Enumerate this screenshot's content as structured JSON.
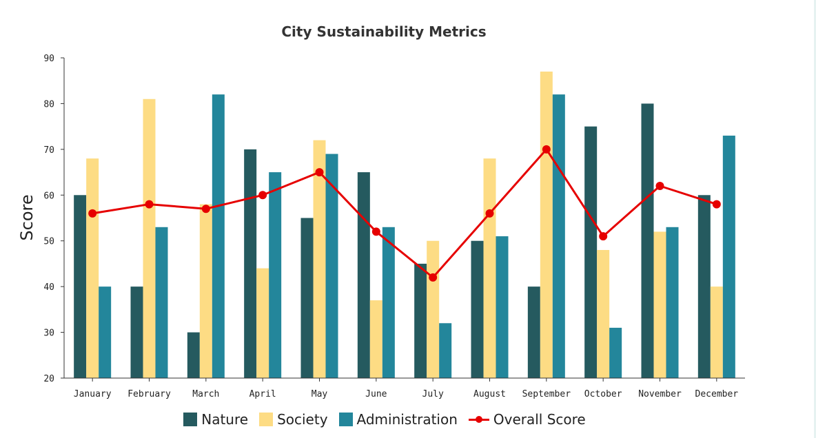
{
  "chart_data": {
    "type": "bar",
    "title": "City Sustainability Metrics",
    "xlabel": "",
    "ylabel": "Score",
    "ylim": [
      20,
      90
    ],
    "yticks": [
      20,
      30,
      40,
      50,
      60,
      70,
      80,
      90
    ],
    "categories": [
      "January",
      "February",
      "March",
      "April",
      "May",
      "June",
      "July",
      "August",
      "September",
      "October",
      "November",
      "December"
    ],
    "series": [
      {
        "name": "Nature",
        "type": "bar",
        "color": "#255a5f",
        "values": [
          60,
          40,
          30,
          70,
          55,
          65,
          45,
          50,
          40,
          75,
          80,
          60
        ]
      },
      {
        "name": "Society",
        "type": "bar",
        "color": "#fddc84",
        "values": [
          68,
          81,
          58,
          44,
          72,
          37,
          50,
          68,
          87,
          48,
          52,
          40
        ]
      },
      {
        "name": "Administration",
        "type": "bar",
        "color": "#23869b",
        "values": [
          40,
          53,
          82,
          65,
          69,
          53,
          32,
          51,
          82,
          31,
          53,
          73
        ]
      },
      {
        "name": "Overall Score",
        "type": "line",
        "color": "#e60000",
        "values": [
          56,
          58,
          57,
          60,
          65,
          52,
          42,
          56,
          70,
          51,
          62,
          58
        ]
      }
    ],
    "grid": false,
    "legend_position": "bottom-center"
  }
}
